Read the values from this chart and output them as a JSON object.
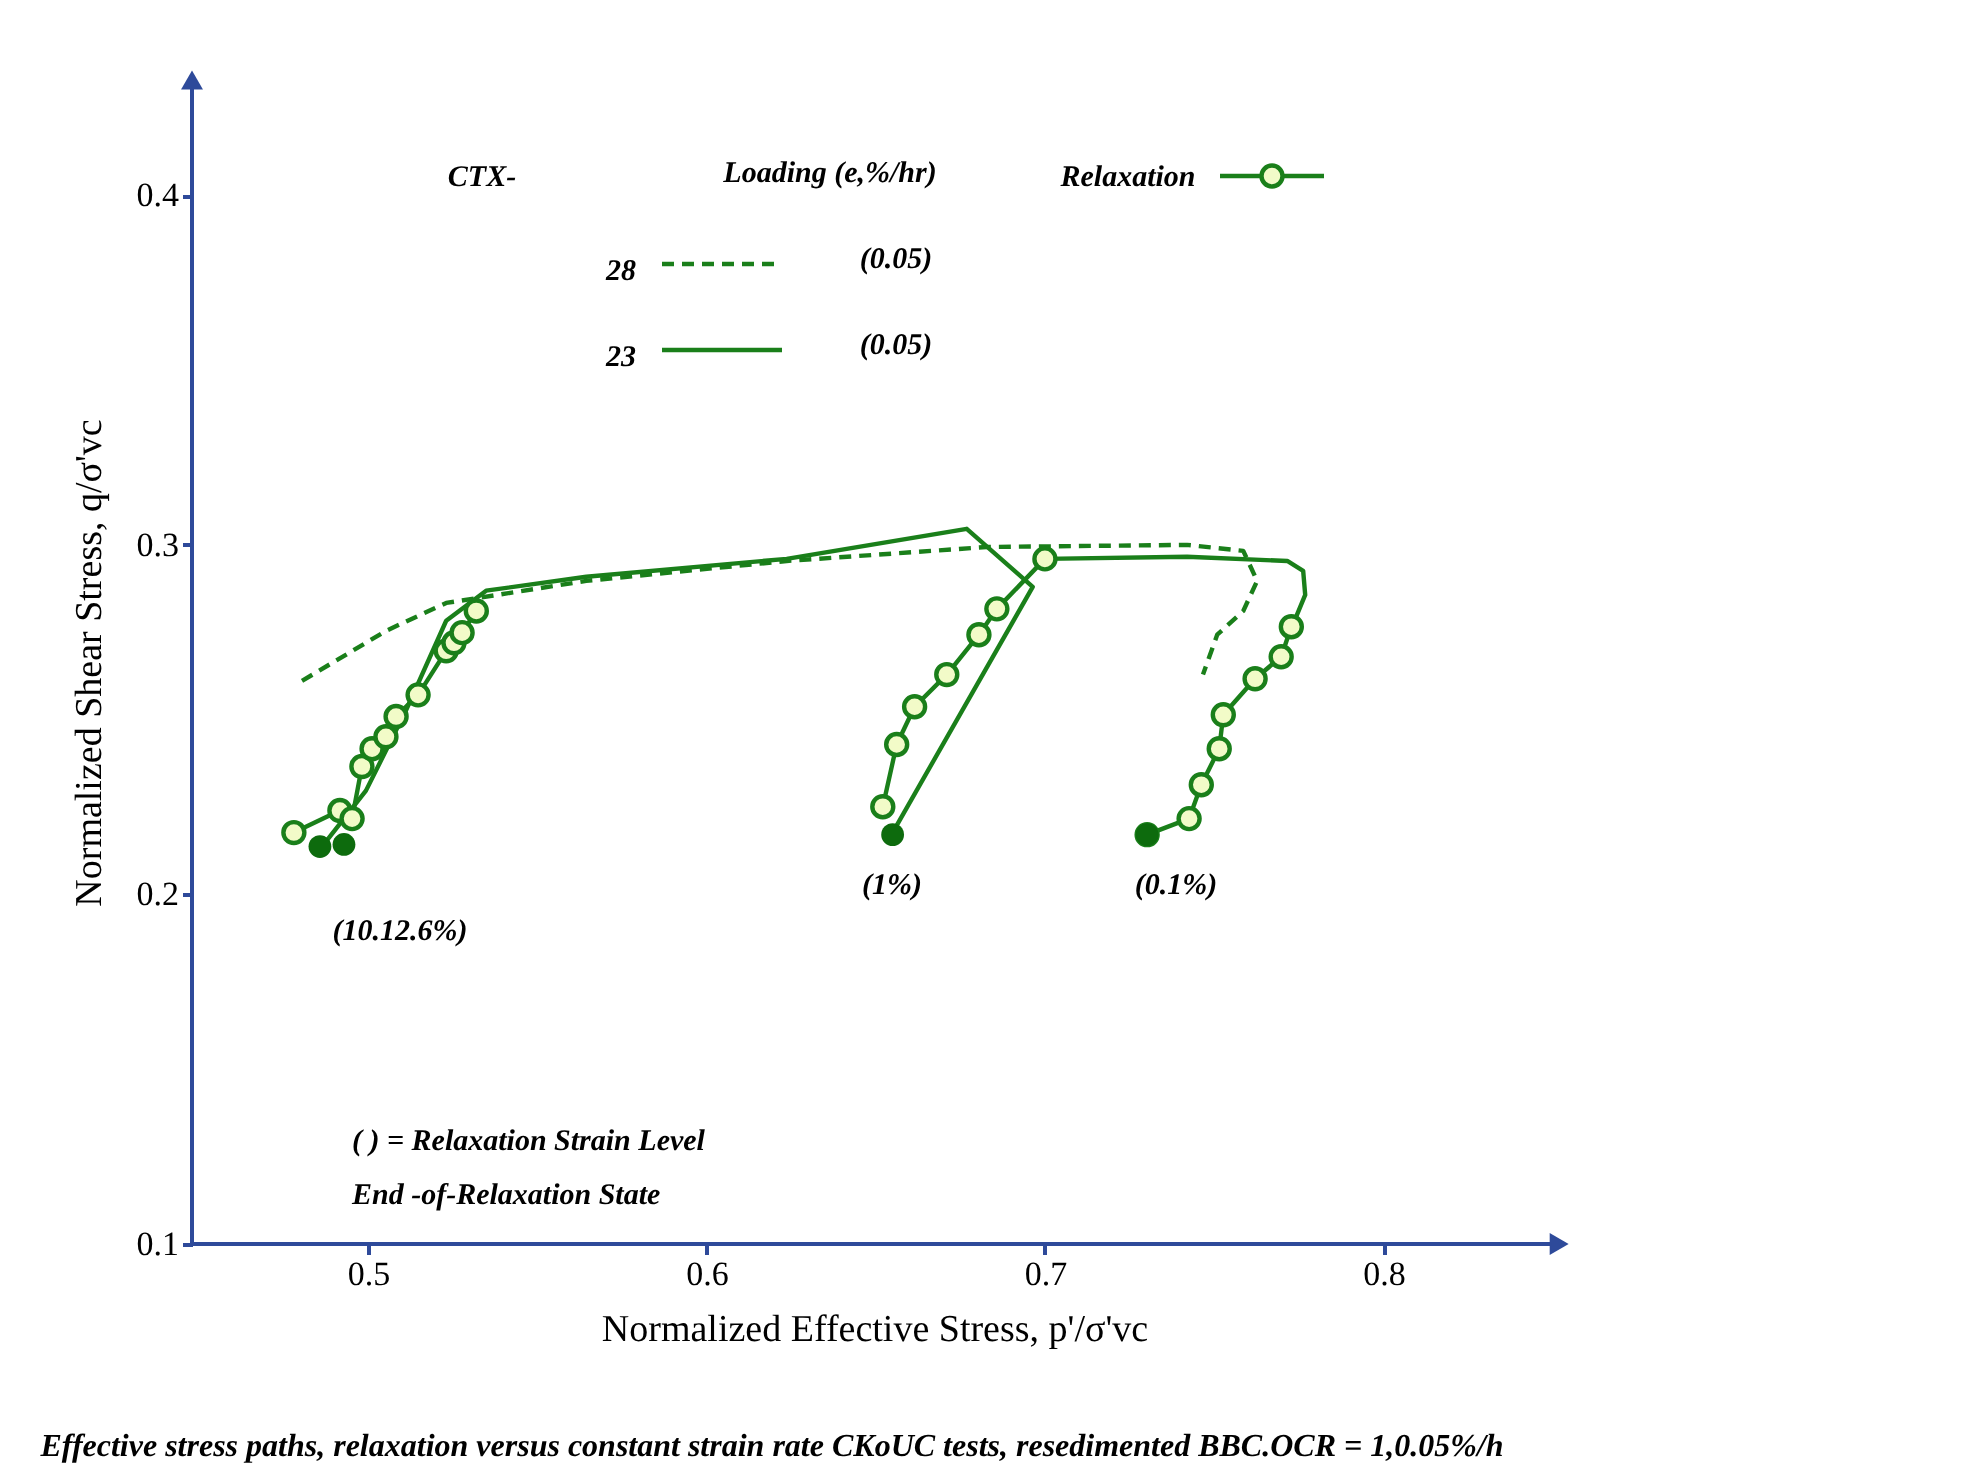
{
  "chart_data": {
    "type": "line",
    "xlabel": "Normalized Effective Stress, p'/σ'vc",
    "ylabel": "Normalized Shear Stress, q/σ'vc",
    "xlim": [
      0.448,
      0.851
    ],
    "ylim": [
      0.1,
      0.433
    ],
    "xticks": [
      0.5,
      0.6,
      0.7,
      0.8
    ],
    "yticks": [
      0.1,
      0.2,
      0.3,
      0.4
    ],
    "grid": false,
    "legend": "top",
    "legend_title": "CTX-",
    "series": [
      {
        "name": "28",
        "line_style": "dashed",
        "marker": "none",
        "color": "#1a7f1a",
        "x": [
          0.4805,
          0.5053,
          0.5231,
          0.5645,
          0.6237,
          0.6828,
          0.742,
          0.7586,
          0.7627,
          0.7586,
          0.7509,
          0.7467
        ],
        "values": [
          0.2611,
          0.2754,
          0.2834,
          0.2897,
          0.2954,
          0.2994,
          0.3,
          0.2983,
          0.2897,
          0.2811,
          0.2743,
          0.2629
        ]
      },
      {
        "name": "23",
        "line_style": "solid",
        "marker": "none",
        "color": "#1a7f1a",
        "x": [
          0.4864,
          0.4994,
          0.5112,
          0.5231,
          0.5349,
          0.5645,
          0.6237,
          0.6769,
          0.6964,
          0.655
        ],
        "values": [
          0.2137,
          0.2297,
          0.2526,
          0.2783,
          0.2869,
          0.2909,
          0.296,
          0.3046,
          0.288,
          0.2177
        ]
      },
      {
        "line_style": "solid",
        "marker": "none",
        "color": "#1a7f1a",
        "x": [
          0.7,
          0.742,
          0.7716,
          0.7763,
          0.7769,
          0.774
        ],
        "values": [
          0.296,
          0.2966,
          0.2954,
          0.2926,
          0.2857,
          0.2789
        ]
      },
      {
        "name": "Relaxation",
        "line_style": "solid",
        "marker": "circle",
        "color": "#1a7f1a",
        "x": [
          0.4781,
          0.4917,
          0.4953,
          0.4982,
          0.5012,
          0.5053,
          0.5083,
          0.5148,
          0.5231,
          0.5254,
          0.5278,
          0.532
        ],
        "values": [
          0.2177,
          0.224,
          0.2217,
          0.2366,
          0.2417,
          0.2451,
          0.2509,
          0.2571,
          0.2697,
          0.272,
          0.2749,
          0.2811
        ]
      },
      {
        "line_style": "solid",
        "marker": "circle",
        "color": "#1a7f1a",
        "x": [
          0.6521,
          0.6562,
          0.6615,
          0.671,
          0.6805,
          0.6858,
          0.7
        ],
        "values": [
          0.2251,
          0.2429,
          0.2537,
          0.2629,
          0.2743,
          0.2817,
          0.296
        ]
      },
      {
        "line_style": "solid",
        "marker": "circle",
        "color": "#1a7f1a",
        "x": [
          0.7302,
          0.7426,
          0.7462,
          0.7515,
          0.7527,
          0.7621,
          0.7698,
          0.7728
        ],
        "values": [
          0.2171,
          0.2217,
          0.2314,
          0.2417,
          0.2514,
          0.2617,
          0.268,
          0.2766
        ]
      },
      {
        "type": "scatter",
        "marker": "circle",
        "color": "#0d6b0d",
        "x": [
          0.4858,
          0.4929,
          0.655,
          0.7302
        ],
        "values": [
          0.2137,
          0.2143,
          0.2171,
          0.2171
        ]
      }
    ],
    "annotations": [
      "Loading (e,%/hr)",
      "(0.05)",
      "(0.05)",
      "(10.12.6%)",
      "(1%)",
      "(0.1%)",
      "( ) = Relaxation Strain Level",
      "End -of-Relaxation State",
      "Effective stress paths, relaxation versus constant strain rate CKoUC tests, resedimented BBC.OCR = 1,0.05%/h"
    ]
  }
}
